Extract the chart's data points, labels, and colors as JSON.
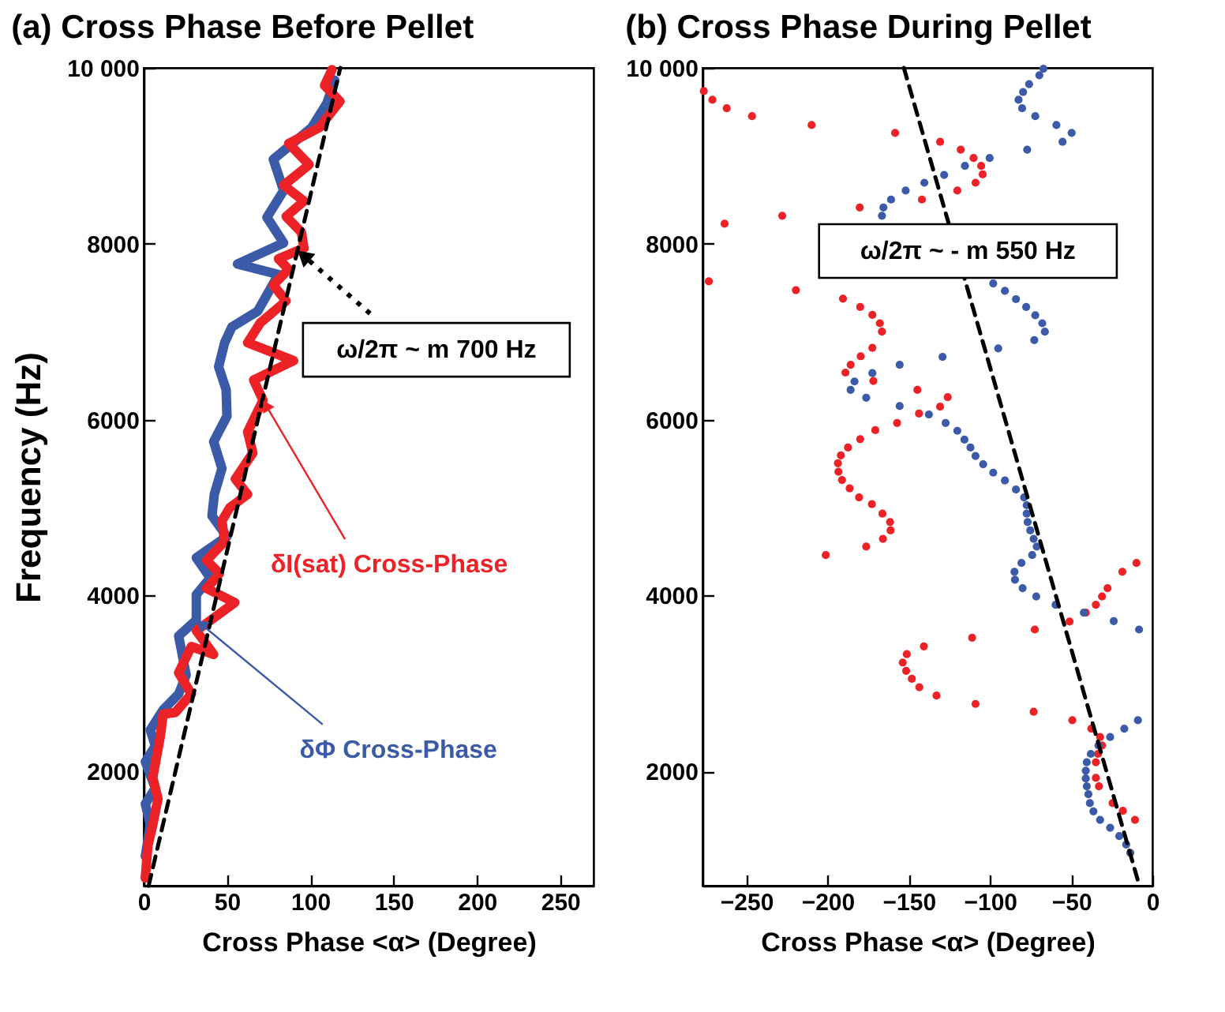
{
  "chart_data": [
    {
      "type": "line",
      "title": "(a) Cross Phase Before Pellet",
      "xlabel": "Cross Phase <α> (Degree)",
      "ylabel": "Frequency (Hz)",
      "xlim": [
        0,
        270
      ],
      "ylim": [
        700,
        10000
      ],
      "xticks": [
        0,
        50,
        100,
        150,
        200,
        250
      ],
      "yticks": [
        2000,
        4000,
        6000,
        8000,
        {
          "value": 10000,
          "label": "10 000"
        }
      ],
      "annotations": [
        {
          "text": "ω/2π ~ m 700 Hz",
          "x": 92.3,
          "y": 7925
        }
      ],
      "series": [
        {
          "name": "δΦ Cross-Phase",
          "color": "#3b5ba9",
          "x": [
            1,
            4,
            1,
            7,
            1,
            7,
            4,
            11.7,
            21,
            25.5,
            21,
            31.6,
            31.6,
            40,
            31.6,
            50,
            41,
            42.4,
            47,
            42,
            50,
            49.5,
            45,
            48.6,
            53,
            68.5,
            80.9,
            56.3,
            84,
            74,
            84,
            77.8,
            100.8,
            110,
            114.7
          ],
          "values": [
            1035,
            1395,
            1630,
            1810,
            2110,
            2290,
            2470,
            2700,
            2880,
            3095,
            3540,
            3720,
            4010,
            4200,
            4430,
            4670,
            4905,
            5150,
            5445,
            5750,
            6040,
            6340,
            6600,
            6875,
            7055,
            7235,
            7650,
            7770,
            8010,
            8300,
            8605,
            8960,
            9320,
            9600,
            9860
          ]
        },
        {
          "name": "δI(sat) Cross-Phase",
          "color": "#ec2227",
          "x": [
            1,
            2.5,
            5.5,
            8.6,
            5.5,
            10,
            11.7,
            19,
            28.6,
            21,
            28.6,
            42,
            31.6,
            54.7,
            37.8,
            45.5,
            37.8,
            48.6,
            47,
            51.7,
            62.4,
            55,
            65.5,
            62.4,
            71.6,
            66,
            90,
            62.4,
            70,
            85.5,
            77.8,
            87,
            80.9,
            96.2,
            94.7,
            85.5,
            96.2,
            84,
            99.3,
            87,
            105.4,
            117.8,
            108.6,
            113
          ],
          "values": [
            787,
            1150,
            1395,
            1687,
            1930,
            2400,
            2650,
            2670,
            2880,
            3120,
            3420,
            3330,
            3600,
            3920,
            4080,
            4250,
            4400,
            4615,
            4850,
            5000,
            5150,
            5325,
            5620,
            5860,
            6220,
            6450,
            6670,
            6875,
            7100,
            7350,
            7530,
            7710,
            7830,
            7950,
            8130,
            8310,
            8485,
            8665,
            8900,
            9140,
            9320,
            9620,
            9800,
            9980
          ]
        },
        {
          "color": "#000000",
          "line_style": "dashed",
          "x": [
            3,
            118
          ],
          "values": [
            700,
            10000
          ]
        }
      ]
    },
    {
      "type": "scatter",
      "title": "(b) Cross Phase During Pellet",
      "xlabel": "Cross Phase <α> (Degree)",
      "xlim": [
        -277,
        0
      ],
      "ylim": [
        700,
        10000
      ],
      "xticks": [
        {
          "value": -250,
          "label": "−250"
        },
        {
          "value": -200,
          "label": "−200"
        },
        {
          "value": -150,
          "label": "−150"
        },
        {
          "value": -100,
          "label": "−100"
        },
        {
          "value": -50,
          "label": "−50"
        },
        0
      ],
      "yticks": [
        2000,
        4000,
        6000,
        8000,
        {
          "value": 10000,
          "label": "10 000"
        }
      ],
      "annotations": [
        "ω/2π ~ - m 550 Hz"
      ],
      "series": [
        {
          "color": "#ec2227",
          "marker": "circle",
          "x": [
            -276.2,
            -270.9,
            -262.1,
            -246.5,
            -209.8,
            -158.4,
            -130.7,
            -118,
            -110.1,
            -105.4,
            -104.5,
            -108.9,
            -120.1,
            -141.9,
            -180.2,
            -227.9,
            -263.4,
            -273.1,
            -219.5,
            -190.5,
            -179.9,
            -172.4,
            -167.8,
            -166.5,
            -172.4,
            -179.6,
            -185.8,
            -189,
            -171.8,
            -144.7,
            -126,
            -130.7,
            -143.7,
            -157.2,
            -170.6,
            -179.9,
            -187.4,
            -191.8,
            -193.6,
            -193.3,
            -191.1,
            -186.4,
            -180.6,
            -172.7,
            -166.2,
            -161.5,
            -161.2,
            -165.9,
            -176.2,
            -201.1,
            -9.8,
            -18.5,
            -27.6,
            -31,
            -34.8,
            -41,
            -51,
            -72.4,
            -111,
            -140.7,
            -151.2,
            -153.7,
            -151.6,
            -148.1,
            -143.5,
            -132.9,
            -108.9,
            -73.1,
            -49.3,
            -37.6,
            -32.2,
            -31,
            -33.5,
            -34.8,
            -34.8,
            -32.9,
            -24.5,
            -18.2,
            -10.7
          ],
          "values": [
            9737,
            9637,
            9541,
            9451,
            9350,
            9260,
            9159,
            9070,
            8975,
            8885,
            8789,
            8694,
            8605,
            8503,
            8413,
            8318,
            8229,
            7572,
            7472,
            7376,
            7281,
            7191,
            7096,
            7000,
            6816,
            6721,
            6624,
            6535,
            6440,
            6338,
            6256,
            6148,
            6070,
            5962,
            5880,
            5778,
            5683,
            5594,
            5504,
            5408,
            5313,
            5218,
            5116,
            5039,
            4931,
            4835,
            4740,
            4645,
            4556,
            4460,
            4370,
            4270,
            4084,
            3989,
            3894,
            3805,
            3703,
            3613,
            3519,
            3422,
            3333,
            3238,
            3143,
            3053,
            2957,
            2862,
            2767,
            2678,
            2581,
            2486,
            2391,
            2295,
            2199,
            2104,
            1926,
            1830,
            1640,
            1551,
            1449
          ]
        },
        {
          "color": "#3b5ba9",
          "marker": "circle",
          "x": [
            -67.1,
            -69.6,
            -75.9,
            -79.6,
            -82.4,
            -80.2,
            -72.1,
            -59.1,
            -49.7,
            -55.3,
            -77.1,
            -100.2,
            -115.4,
            -128.2,
            -140.4,
            -151.9,
            -160.9,
            -165.6,
            -166.5,
            -98,
            -90.8,
            -84,
            -77.7,
            -72.1,
            -67.8,
            -66.2,
            -72.7,
            -94.9,
            -129.2,
            -155.6,
            -172.4,
            -183.4,
            -185.8,
            -176.2,
            -155.6,
            -137.6,
            -127.3,
            -120.1,
            -115.7,
            -112,
            -108.9,
            -104.2,
            -98,
            -90.8,
            -84,
            -79,
            -77.4,
            -77.4,
            -76.8,
            -75.2,
            -73.1,
            -71.2,
            -74,
            -80.6,
            -84.9,
            -84.6,
            -79.9,
            -71.5,
            -59.6,
            -42.2,
            -23.8,
            -8.2,
            -8.9,
            -17.3,
            -26,
            -33.2,
            -37.9,
            -40.4,
            -41,
            -41,
            -40.4,
            -39.4,
            -38.5,
            -36.3,
            -32.2,
            -26,
            -20.4,
            -16.1,
            -13.6
          ],
          "values": [
            9990,
            9916,
            9815,
            9726,
            9637,
            9541,
            9451,
            9350,
            9261,
            9159,
            9070,
            8975,
            8885,
            8783,
            8694,
            8605,
            8503,
            8413,
            8318,
            7549,
            7465,
            7370,
            7281,
            7186,
            7096,
            7000,
            6905,
            6810,
            6714,
            6624,
            6529,
            6434,
            6338,
            6249,
            6154,
            6059,
            5962,
            5873,
            5773,
            5683,
            5587,
            5493,
            5397,
            5308,
            5205,
            5116,
            5027,
            4931,
            4835,
            4740,
            4645,
            4556,
            4460,
            4370,
            4270,
            4180,
            4084,
            3989,
            3894,
            3805,
            3709,
            3613,
            2581,
            2486,
            2391,
            2295,
            2199,
            2104,
            2008,
            1919,
            1830,
            1740,
            1640,
            1545,
            1449,
            1359,
            1264,
            1168,
            1073
          ]
        },
        {
          "type": "line",
          "color": "#000000",
          "line_style": "dashed",
          "x": [
            -153,
            -8
          ],
          "values": [
            10000,
            700
          ]
        }
      ]
    }
  ]
}
